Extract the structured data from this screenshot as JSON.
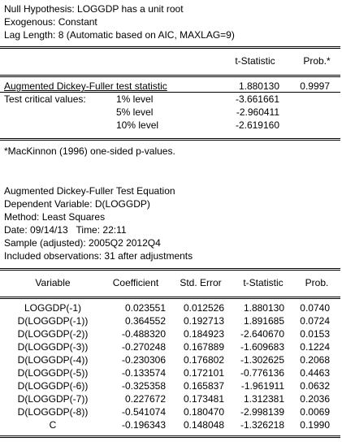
{
  "header": {
    "null_hypothesis": "Null Hypothesis: LOGGDP has a unit root",
    "exogenous": "Exogenous: Constant",
    "lag_length": "Lag Length: 8 (Automatic based on AIC, MAXLAG=9)"
  },
  "adf": {
    "col_tstat": "t-Statistic",
    "col_prob": "Prob.*",
    "stat_label": "Augmented Dickey-Fuller test statistic",
    "stat_value": "1.880130",
    "stat_prob": "0.9997",
    "crit_label": "Test critical values:",
    "crit": [
      {
        "level": "1% level",
        "value": "-3.661661"
      },
      {
        "level": "5% level",
        "value": "-2.960411"
      },
      {
        "level": "10% level",
        "value": "-2.619160"
      }
    ],
    "footnote": "*MacKinnon (1996) one-sided p-values."
  },
  "equation": {
    "title": "Augmented Dickey-Fuller Test Equation",
    "dependent": "Dependent Variable: D(LOGGDP)",
    "method": "Method: Least Squares",
    "date_label": "Date: 09/14/13   Time: 22:11",
    "sample": "Sample (adjusted): 2005Q2 2012Q4",
    "observations": "Included observations: 31 after adjustments"
  },
  "coef_table": {
    "headers": [
      "Variable",
      "Coefficient",
      "Std. Error",
      "t-Statistic",
      "Prob."
    ],
    "rows": [
      [
        "LOGGDP(-1)",
        "0.023551",
        "0.012526",
        "1.880130",
        "0.0740"
      ],
      [
        "D(LOGGDP(-1))",
        "0.364552",
        "0.192713",
        "1.891685",
        "0.0724"
      ],
      [
        "D(LOGGDP(-2))",
        "-0.488320",
        "0.184923",
        "-2.640670",
        "0.0153"
      ],
      [
        "D(LOGGDP(-3))",
        "-0.270248",
        "0.167889",
        "-1.609683",
        "0.1224"
      ],
      [
        "D(LOGGDP(-4))",
        "-0.230306",
        "0.176802",
        "-1.302625",
        "0.2068"
      ],
      [
        "D(LOGGDP(-5))",
        "-0.133574",
        "0.172101",
        "-0.776136",
        "0.4463"
      ],
      [
        "D(LOGGDP(-6))",
        "-0.325358",
        "0.165837",
        "-1.961911",
        "0.0632"
      ],
      [
        "D(LOGGDP(-7))",
        "0.227672",
        "0.173481",
        "1.312381",
        "0.2036"
      ],
      [
        "D(LOGGDP(-8))",
        "-0.541074",
        "0.180470",
        "-2.998139",
        "0.0069"
      ],
      [
        "C",
        "-0.196343",
        "0.148048",
        "-1.326218",
        "0.1990"
      ]
    ]
  }
}
